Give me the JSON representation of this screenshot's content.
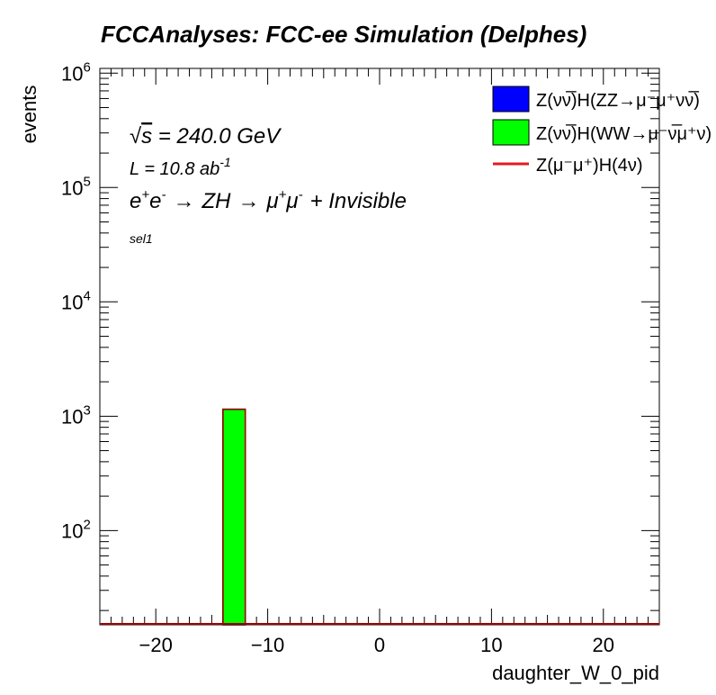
{
  "chart_data": {
    "type": "bar",
    "title": "FCCAnalyses: FCC-ee Simulation (Delphes)",
    "xlabel": "daughter_W_0_pid",
    "ylabel": "events",
    "xlim": [
      -25,
      25
    ],
    "ylim": [
      15,
      1100000
    ],
    "log_y": true,
    "x_ticks": [
      -20,
      -10,
      0,
      10,
      20
    ],
    "x_tick_labels": [
      "−20",
      "−10",
      "0",
      "10",
      "20"
    ],
    "y_tick_base": "10",
    "y_tick_exponents": [
      "2",
      "3",
      "4",
      "5",
      "6"
    ],
    "y_tick_values": [
      100,
      1000,
      10000,
      100000,
      1000000
    ],
    "annotations": {
      "sqrt_s": "= 240.0 GeV",
      "sqrt_sym": "√",
      "s": "s",
      "lumi": "L = 10.8 ab",
      "lumi_exp": "-1",
      "process": {
        "e": "e",
        "plus": "+",
        "e2": "e",
        "minus": "-",
        "arrow": "→",
        "zh": "ZH",
        "arrow2": "→",
        "mu": "μ",
        "mu_plus": "+",
        "mu2": "μ",
        "mu_minus": "-",
        "rest": "+ Invisible"
      },
      "selection": "sel1"
    },
    "legend_position": "top-right",
    "series": [
      {
        "name": "Z(νν̅)H(ZZ→μ⁻μ⁺νν̅)",
        "style": "filled",
        "color": "#0000ff",
        "bins": []
      },
      {
        "name": "Z(νν̅)H(WW→μ⁻ν̅μ⁺ν)",
        "style": "filled",
        "color": "#00ff00",
        "bins": [
          {
            "x_low": -14,
            "x_high": -12,
            "value": 1150
          }
        ]
      },
      {
        "name": "Z(μ⁻μ⁺)H(4ν)",
        "style": "line",
        "color": "#e31a1c",
        "bins": []
      }
    ]
  }
}
